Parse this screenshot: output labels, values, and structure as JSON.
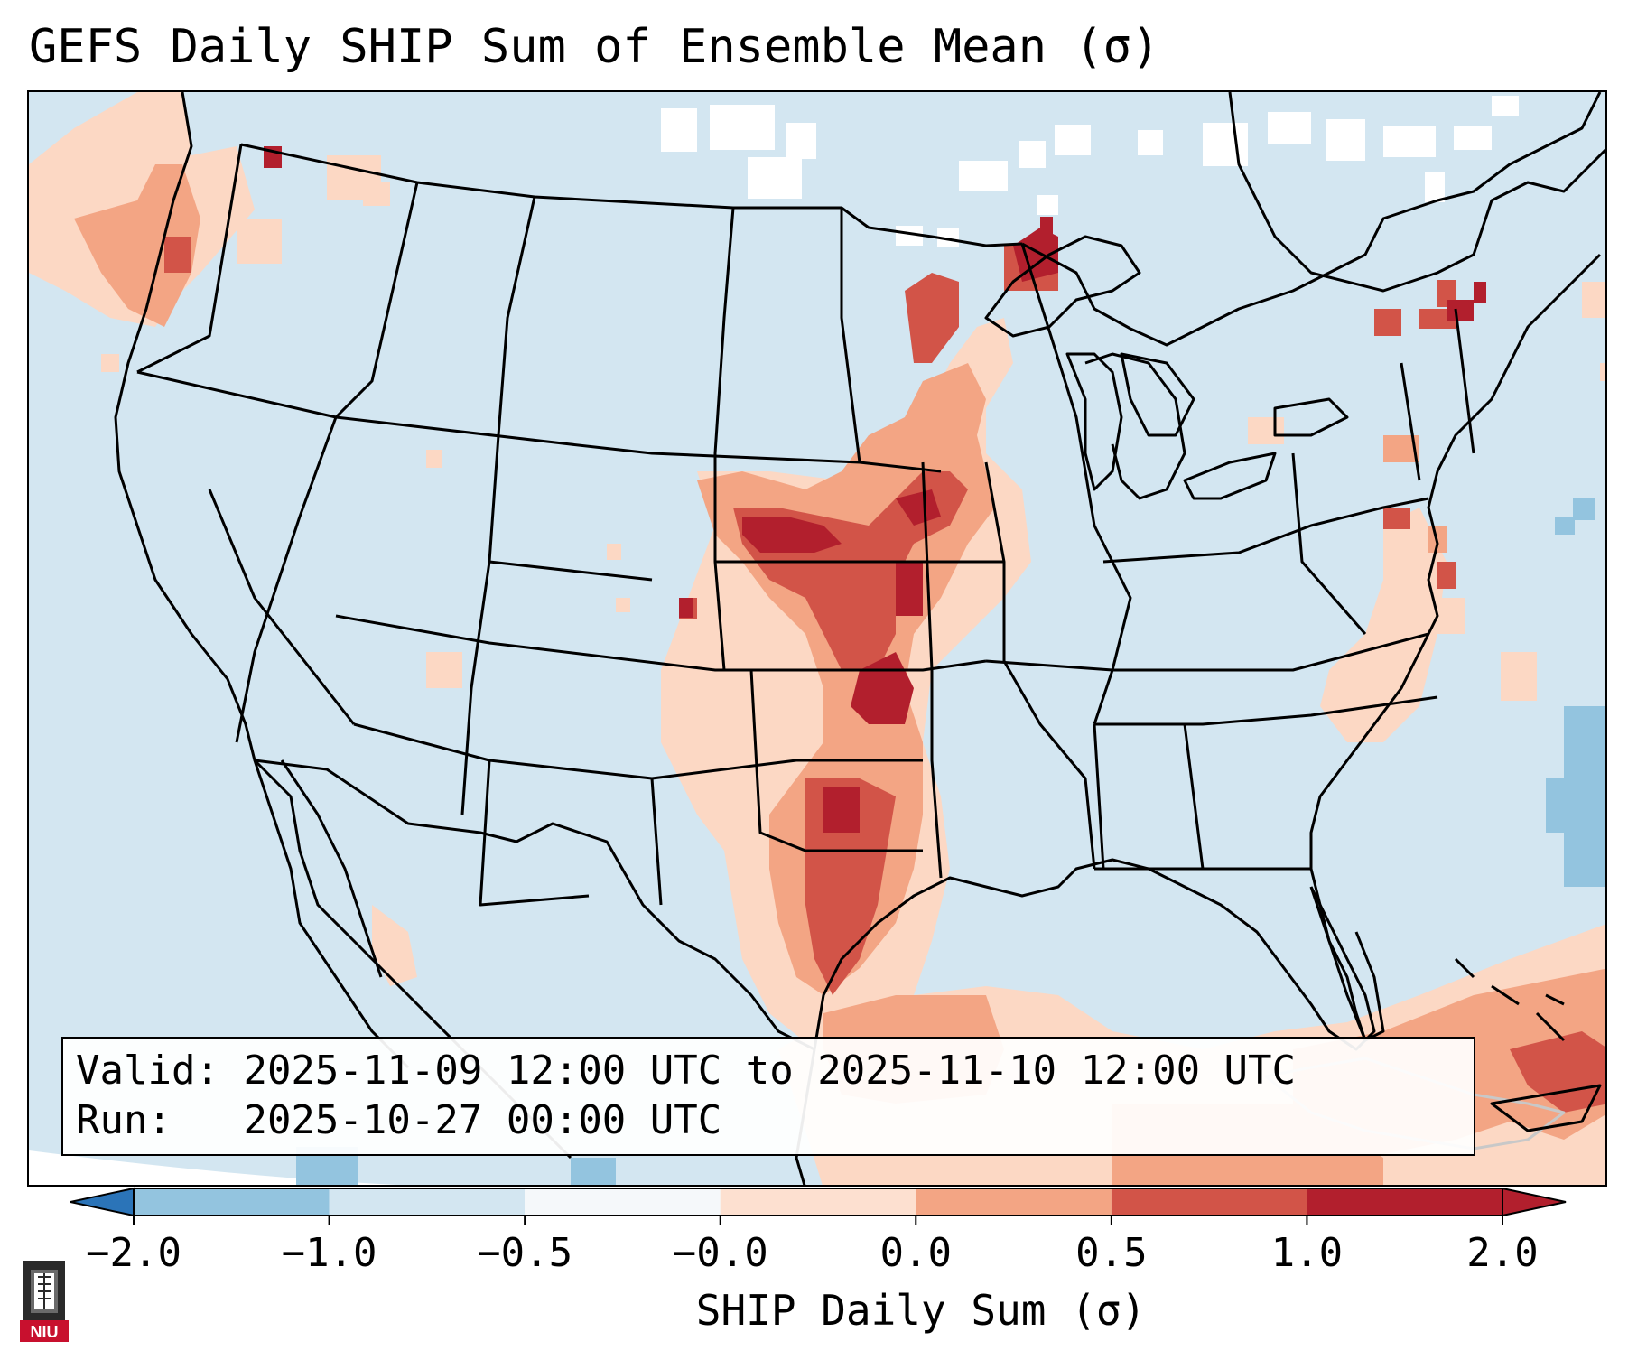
{
  "title": "GEFS Daily SHIP Sum of Ensemble Mean (σ)",
  "info": {
    "valid_label": "Valid:",
    "valid_value": "2025-11-09 12:00 UTC to 2025-11-10 12:00 UTC",
    "run_label": "Run:",
    "run_value": "2025-10-27 00:00 UTC"
  },
  "colorbar": {
    "label": "SHIP Daily Sum (σ)",
    "ticks": [
      "−2.0",
      "−1.0",
      "−0.5",
      "−0.0",
      "0.0",
      "0.5",
      "1.0",
      "2.0"
    ],
    "colors": [
      "#2b74b8",
      "#93c4df",
      "#d3e6f1",
      "#f5f8fa",
      "#fde0d0",
      "#f3a584",
      "#d25448",
      "#b21f2d"
    ]
  },
  "logo": {
    "text": "NIU",
    "color": "#c8102e"
  },
  "colors": {
    "land_bg": "#d3e6f1",
    "low": "#fcd8c4",
    "mid": "#f3a584",
    "high": "#d25448",
    "max": "#b21f2d",
    "neg": "#93c4df"
  }
}
